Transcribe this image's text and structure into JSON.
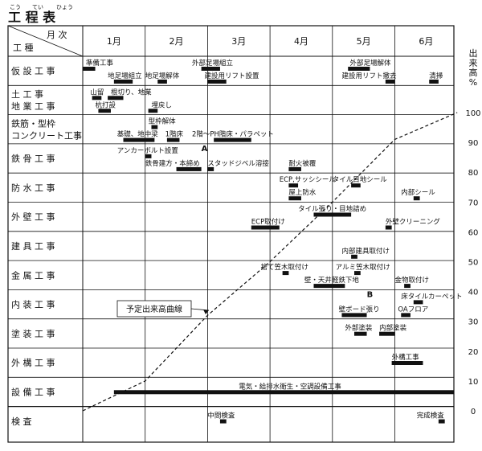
{
  "title": {
    "text": "工 程 表",
    "ruby": [
      "こう",
      "てい",
      "ひょう"
    ]
  },
  "header": {
    "months_label": "月 次",
    "category_label": "工 種"
  },
  "months": [
    "1月",
    "2月",
    "3月",
    "4月",
    "5月",
    "6月"
  ],
  "rate_axis": {
    "label": "出来高%",
    "ticks": [
      "100",
      "90",
      "80",
      "70",
      "60",
      "50",
      "40",
      "30",
      "20",
      "10",
      "0"
    ]
  },
  "categories": [
    "仮 設 工 事",
    "土 工 事\n地 業 工 事",
    "鉄筋・型枠\nコンクリート工事",
    "鉄 骨 工 事",
    "防 水 工 事",
    "外 壁 工 事",
    "建 具 工 事",
    "金 属 工 事",
    "内 装 工 事",
    "塗 装 工 事",
    "外 構 工 事",
    "設 備 工 事",
    "検 査"
  ],
  "tasks": [
    {
      "row": 0,
      "label": "準備工事",
      "start": 0.0,
      "end": 0.2,
      "label_at": 0.05,
      "label_line": 0
    },
    {
      "row": 0,
      "label": "地足場組立",
      "start": 0.5,
      "end": 0.8,
      "label_at": 0.4,
      "label_line": 1
    },
    {
      "row": 0,
      "label": "地足場解体",
      "start": 1.2,
      "end": 1.35,
      "label_at": 1.0,
      "label_line": 1
    },
    {
      "row": 0,
      "label": "外部足場組立",
      "start": 1.9,
      "end": 2.2,
      "label_at": 1.75,
      "label_line": 0
    },
    {
      "row": 0,
      "label": "建設用リフト設置",
      "start": 2.0,
      "end": 2.3,
      "label_at": 1.95,
      "label_line": 1
    },
    {
      "row": 0,
      "label": "外部足場解体",
      "start": 4.25,
      "end": 4.6,
      "label_at": 4.28,
      "label_line": 0
    },
    {
      "row": 0,
      "label": "建設用リフト撤去",
      "start": 4.85,
      "end": 5.0,
      "label_at": 4.15,
      "label_line": 1
    },
    {
      "row": 0,
      "label": "清掃",
      "start": 5.55,
      "end": 5.7,
      "label_at": 5.55,
      "label_line": 1
    },
    {
      "row": 1,
      "label": "山留",
      "start": 0.15,
      "end": 0.3,
      "label_at": 0.12,
      "label_line": 0
    },
    {
      "row": 1,
      "label": "根切り、地業",
      "start": 0.4,
      "end": 0.65,
      "label_at": 0.45,
      "label_line": 0
    },
    {
      "row": 1,
      "label": "杭打設",
      "start": 0.25,
      "end": 0.45,
      "label_at": 0.2,
      "label_line": 1
    },
    {
      "row": 1,
      "label": "埋戻し",
      "start": 1.05,
      "end": 1.2,
      "label_at": 1.1,
      "label_line": 1
    },
    {
      "row": 2,
      "label": "型枠解体",
      "start": 1.1,
      "end": 1.2,
      "label_at": 1.05,
      "label_line": 0
    },
    {
      "row": 2,
      "label": "基礎、地中梁",
      "start": 0.65,
      "end": 1.15,
      "label_at": 0.55,
      "label_line": 1
    },
    {
      "row": 2,
      "label": "1階床",
      "start": 1.35,
      "end": 1.55,
      "label_at": 1.32,
      "label_line": 1
    },
    {
      "row": 2,
      "label": "2階～PH階床・パラペット",
      "start": 2.1,
      "end": 2.7,
      "label_at": 1.75,
      "label_line": 1
    },
    {
      "row": 3,
      "label": "アンカーボルト設置",
      "start": 1.0,
      "end": 1.1,
      "label_at": 0.55,
      "label_line": 0
    },
    {
      "row": 3,
      "label": "鉄骨建方・本締め",
      "start": 1.5,
      "end": 1.9,
      "label_at": 1.0,
      "label_line": 1
    },
    {
      "row": 3,
      "label": "スタッドジベル溶接",
      "start": 2.0,
      "end": 2.1,
      "label_at": 2.0,
      "label_line": 1
    },
    {
      "row": 3,
      "label": "耐火被覆",
      "start": 3.3,
      "end": 3.5,
      "label_at": 3.3,
      "label_line": 1
    },
    {
      "row": 4,
      "label": "ECP,サッシシール",
      "start": 3.3,
      "end": 3.45,
      "label_at": 3.15,
      "label_line": 0
    },
    {
      "row": 4,
      "label": "タイル目地シール",
      "start": 4.3,
      "end": 4.45,
      "label_at": 4.0,
      "label_line": 0
    },
    {
      "row": 4,
      "label": "屋上防水",
      "start": 3.3,
      "end": 3.5,
      "label_at": 3.3,
      "label_line": 1
    },
    {
      "row": 4,
      "label": "内部シール",
      "start": 5.3,
      "end": 5.4,
      "label_at": 5.1,
      "label_line": 1
    },
    {
      "row": 5,
      "label": "タイル張り・目地詰め",
      "start": 3.7,
      "end": 4.3,
      "label_at": 3.45,
      "label_line": 0
    },
    {
      "row": 5,
      "label": "ECP取付け",
      "start": 2.7,
      "end": 3.15,
      "label_at": 2.7,
      "label_line": 1
    },
    {
      "row": 5,
      "label": "外壁クリーニング",
      "start": 4.85,
      "end": 4.95,
      "label_at": 4.85,
      "label_line": 1
    },
    {
      "row": 6,
      "label": "内部建具取付け",
      "start": 4.3,
      "end": 4.4,
      "label_at": 4.15,
      "label_line": 1
    },
    {
      "row": 7,
      "label": "捨て笠木取付け",
      "start": 3.2,
      "end": 3.3,
      "label_at": 2.85,
      "label_line": 0
    },
    {
      "row": 7,
      "label": "アルミ笠木取付け",
      "start": 4.35,
      "end": 4.45,
      "label_at": 4.05,
      "label_line": 0
    },
    {
      "row": 7,
      "label": "壁・天井軽鉄下地",
      "start": 3.7,
      "end": 4.2,
      "label_at": 3.55,
      "label_line": 1
    },
    {
      "row": 7,
      "label": "金物取付け",
      "start": 5.15,
      "end": 5.25,
      "label_at": 5.0,
      "label_line": 1
    },
    {
      "row": 8,
      "label": "壁ボード張り",
      "start": 4.15,
      "end": 4.55,
      "label_at": 4.1,
      "label_line": 1
    },
    {
      "row": 8,
      "label": "床タイルカーペット",
      "start": 5.3,
      "end": 5.45,
      "label_at": 5.1,
      "label_line": 0
    },
    {
      "row": 8,
      "label": "OAフロア",
      "start": 5.1,
      "end": 5.25,
      "label_at": 5.05,
      "label_line": 1
    },
    {
      "row": 9,
      "label": "外部塗装",
      "start": 4.35,
      "end": 4.55,
      "label_at": 4.2,
      "label_line": 0
    },
    {
      "row": 9,
      "label": "内部塗装",
      "start": 4.75,
      "end": 5.0,
      "label_at": 4.75,
      "label_line": 0
    },
    {
      "row": 10,
      "label": "外構工事",
      "start": 4.95,
      "end": 5.45,
      "label_at": 4.95,
      "label_line": 0
    },
    {
      "row": 11,
      "label": "電気・給排水衛生・空調設備工事",
      "start": 0.5,
      "end": 5.95,
      "label_at": 2.5,
      "label_line": 0
    },
    {
      "row": 12,
      "label": "中間検査",
      "start": 2.2,
      "end": 2.3,
      "label_at": 2.0,
      "label_line": 0
    },
    {
      "row": 12,
      "label": "完成検査",
      "start": 5.7,
      "end": 5.8,
      "label_at": 5.35,
      "label_line": 0
    }
  ],
  "markers": [
    {
      "label": "A",
      "month": 1.95,
      "row": 3
    },
    {
      "label": "B",
      "month": 4.6,
      "row": 8
    }
  ],
  "s_curve": {
    "label": "予定出来高曲線",
    "points": [
      [
        0.0,
        0
      ],
      [
        1.0,
        10
      ],
      [
        2.0,
        32
      ],
      [
        3.0,
        50
      ],
      [
        4.0,
        70
      ],
      [
        5.0,
        91
      ],
      [
        6.0,
        100
      ]
    ]
  }
}
